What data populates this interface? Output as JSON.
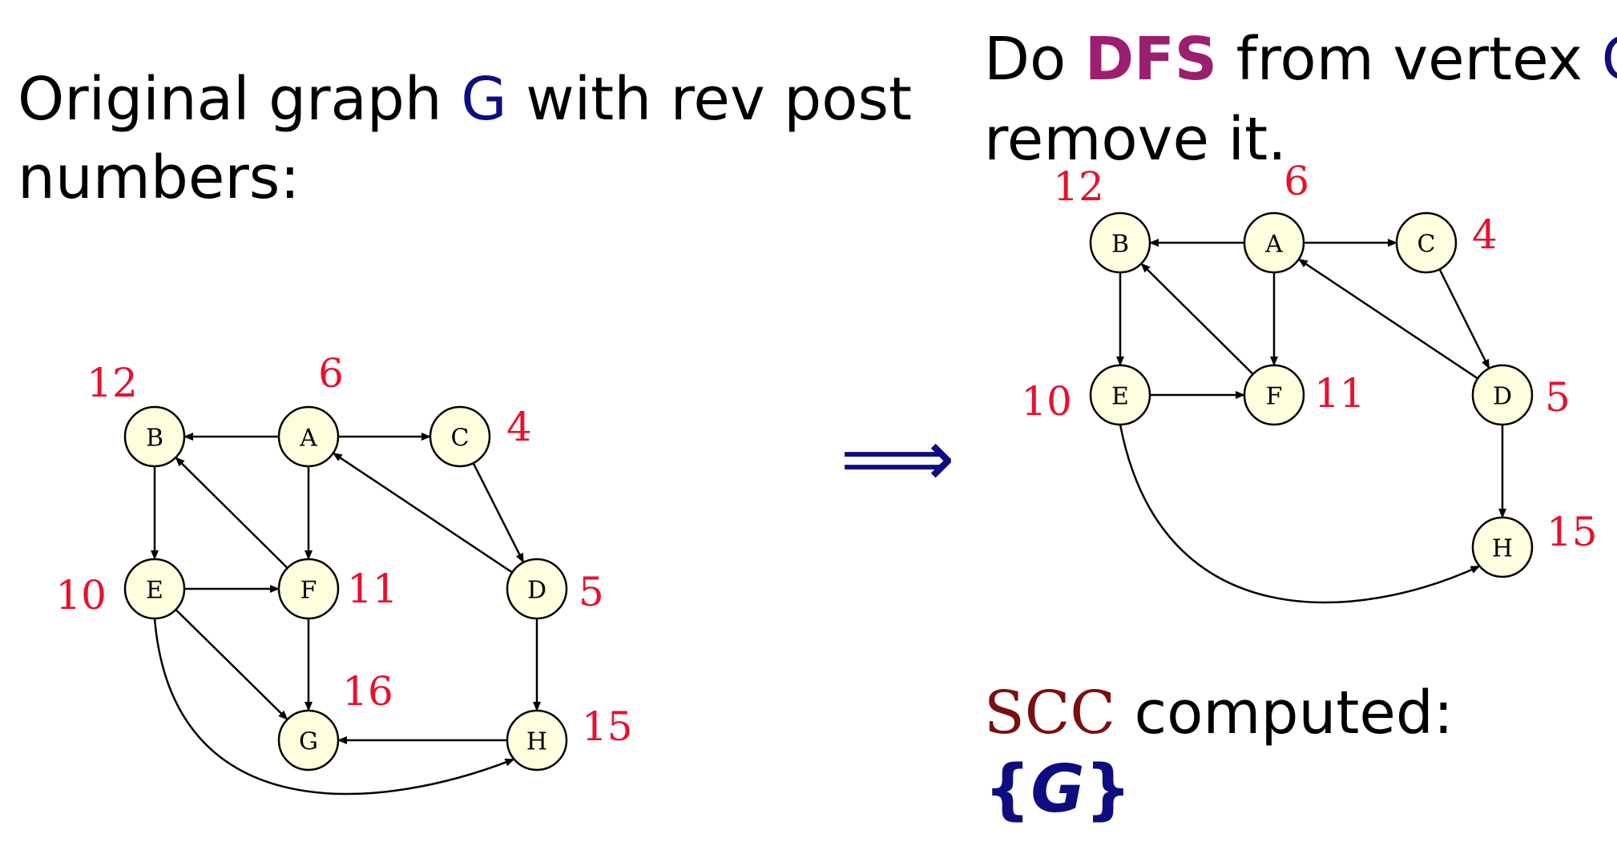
{
  "left_heading": {
    "line1_prefix": "Original graph ",
    "graph_symbol": "G",
    "line1_suffix": " with rev post",
    "line2": "numbers:"
  },
  "right_heading": {
    "line1_prefix": "Do ",
    "dfs": "DFS",
    "line1_suffix": " from vertex ",
    "vertex": "G",
    "line2": "remove it."
  },
  "implies_symbol": "⟹",
  "result": {
    "label": "SCC",
    "suffix": " computed:",
    "set_open": "{",
    "set_item": "G",
    "set_close": "}"
  },
  "colors": {
    "node_fill": "#ffffe0",
    "number": "#e8102c",
    "accent_blue": "#0d0d80",
    "dfs": "#9c1f6f",
    "scc": "#7a0f0f"
  },
  "graphs": {
    "original": {
      "nodes": [
        {
          "id": "B",
          "label": "B",
          "number": "12"
        },
        {
          "id": "A",
          "label": "A",
          "number": "6"
        },
        {
          "id": "C",
          "label": "C",
          "number": "4"
        },
        {
          "id": "E",
          "label": "E",
          "number": "10"
        },
        {
          "id": "F",
          "label": "F",
          "number": "11"
        },
        {
          "id": "D",
          "label": "D",
          "number": "5"
        },
        {
          "id": "G",
          "label": "G",
          "number": "16"
        },
        {
          "id": "H",
          "label": "H",
          "number": "15"
        }
      ],
      "edges": [
        {
          "from": "A",
          "to": "B"
        },
        {
          "from": "A",
          "to": "C"
        },
        {
          "from": "A",
          "to": "F"
        },
        {
          "from": "B",
          "to": "E"
        },
        {
          "from": "F",
          "to": "B"
        },
        {
          "from": "C",
          "to": "D"
        },
        {
          "from": "D",
          "to": "A"
        },
        {
          "from": "E",
          "to": "F"
        },
        {
          "from": "E",
          "to": "G"
        },
        {
          "from": "F",
          "to": "G"
        },
        {
          "from": "D",
          "to": "H"
        },
        {
          "from": "H",
          "to": "G"
        },
        {
          "from": "E",
          "to": "H"
        }
      ]
    },
    "after_removal": {
      "nodes": [
        {
          "id": "B",
          "label": "B",
          "number": "12"
        },
        {
          "id": "A",
          "label": "A",
          "number": "6"
        },
        {
          "id": "C",
          "label": "C",
          "number": "4"
        },
        {
          "id": "E",
          "label": "E",
          "number": "10"
        },
        {
          "id": "F",
          "label": "F",
          "number": "11"
        },
        {
          "id": "D",
          "label": "D",
          "number": "5"
        },
        {
          "id": "H",
          "label": "H",
          "number": "15"
        }
      ],
      "edges": [
        {
          "from": "A",
          "to": "B"
        },
        {
          "from": "A",
          "to": "C"
        },
        {
          "from": "A",
          "to": "F"
        },
        {
          "from": "B",
          "to": "E"
        },
        {
          "from": "F",
          "to": "B"
        },
        {
          "from": "C",
          "to": "D"
        },
        {
          "from": "D",
          "to": "A"
        },
        {
          "from": "E",
          "to": "F"
        },
        {
          "from": "D",
          "to": "H"
        },
        {
          "from": "E",
          "to": "H"
        }
      ]
    }
  }
}
